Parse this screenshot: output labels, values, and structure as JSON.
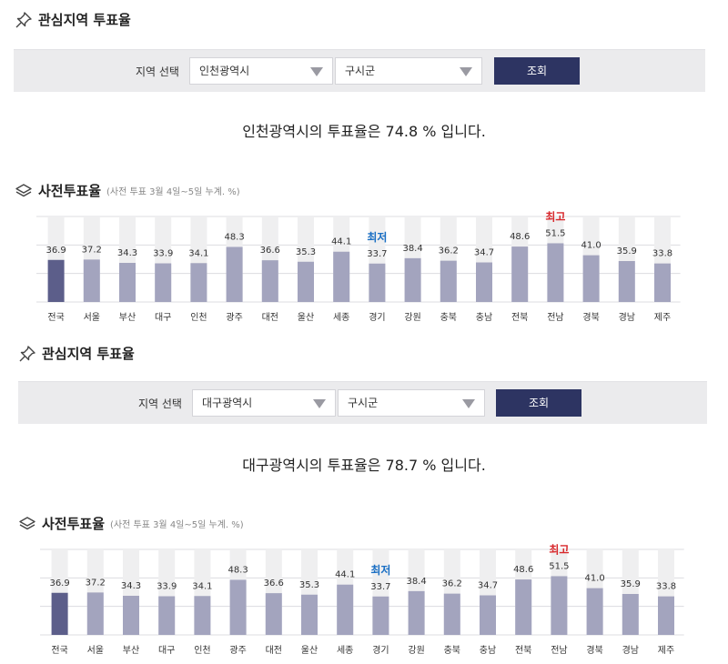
{
  "sections": [
    {
      "interest_title": "관심지역 투표율",
      "filter_label": "지역 선택",
      "sido_value": "인천광역시",
      "sigungu_value": "구시군",
      "search_label": "조회",
      "result_text": "인천광역시의 투표율은 74.8 % 입니다.",
      "early_title": "사전투표율",
      "early_note": "(사전 투표 3월 4일~5일 누계. %)"
    },
    {
      "interest_title": "관심지역 투표율",
      "filter_label": "지역 선택",
      "sido_value": "대구광역시",
      "sigungu_value": "구시군",
      "search_label": "조회",
      "result_text": "대구광역시의 투표율은 78.7 % 입니다.",
      "early_title": "사전투표율",
      "early_note": "(사전 투표 3월 4일~5일 누계. %)"
    }
  ],
  "chart_data": [
    {
      "type": "bar",
      "categories": [
        "전국",
        "서울",
        "부산",
        "대구",
        "인천",
        "광주",
        "대전",
        "울산",
        "세종",
        "경기",
        "강원",
        "충북",
        "충남",
        "전북",
        "전남",
        "경북",
        "경남",
        "제주"
      ],
      "values": [
        36.9,
        37.2,
        34.3,
        33.9,
        34.1,
        48.3,
        36.6,
        35.3,
        44.1,
        33.7,
        38.4,
        36.2,
        34.7,
        48.6,
        51.5,
        41.0,
        35.9,
        33.8
      ],
      "labels": [
        "36.9",
        "37.2",
        "34.3",
        "33.9",
        "34.1",
        "48.3",
        "36.6",
        "35.3",
        "44.1",
        "33.7",
        "38.4",
        "36.2",
        "34.7",
        "48.6",
        "51.5",
        "41.0",
        "35.9",
        "33.8"
      ],
      "ylim": [
        0,
        75
      ],
      "highlight_index": 0,
      "annotations": [
        {
          "index": 9,
          "text": "최저",
          "color": "#1a6fc4"
        },
        {
          "index": 14,
          "text": "최고",
          "color": "#d8282c"
        }
      ],
      "colors": {
        "national": "#5c5e8a",
        "region": "#a3a4be",
        "track": "#efeff0",
        "grid": "#dcdce0"
      }
    },
    {
      "type": "bar",
      "categories": [
        "전국",
        "서울",
        "부산",
        "대구",
        "인천",
        "광주",
        "대전",
        "울산",
        "세종",
        "경기",
        "강원",
        "충북",
        "충남",
        "전북",
        "전남",
        "경북",
        "경남",
        "제주"
      ],
      "values": [
        36.9,
        37.2,
        34.3,
        33.9,
        34.1,
        48.3,
        36.6,
        35.3,
        44.1,
        33.7,
        38.4,
        36.2,
        34.7,
        48.6,
        51.5,
        41.0,
        35.9,
        33.8
      ],
      "labels": [
        "36.9",
        "37.2",
        "34.3",
        "33.9",
        "34.1",
        "48.3",
        "36.6",
        "35.3",
        "44.1",
        "33.7",
        "38.4",
        "36.2",
        "34.7",
        "48.6",
        "51.5",
        "41.0",
        "35.9",
        "33.8"
      ],
      "ylim": [
        0,
        75
      ],
      "highlight_index": 0,
      "annotations": [
        {
          "index": 9,
          "text": "최저",
          "color": "#1a6fc4"
        },
        {
          "index": 14,
          "text": "최고",
          "color": "#d8282c"
        }
      ],
      "colors": {
        "national": "#5c5e8a",
        "region": "#a3a4be",
        "track": "#efeff0",
        "grid": "#dcdce0"
      }
    }
  ]
}
